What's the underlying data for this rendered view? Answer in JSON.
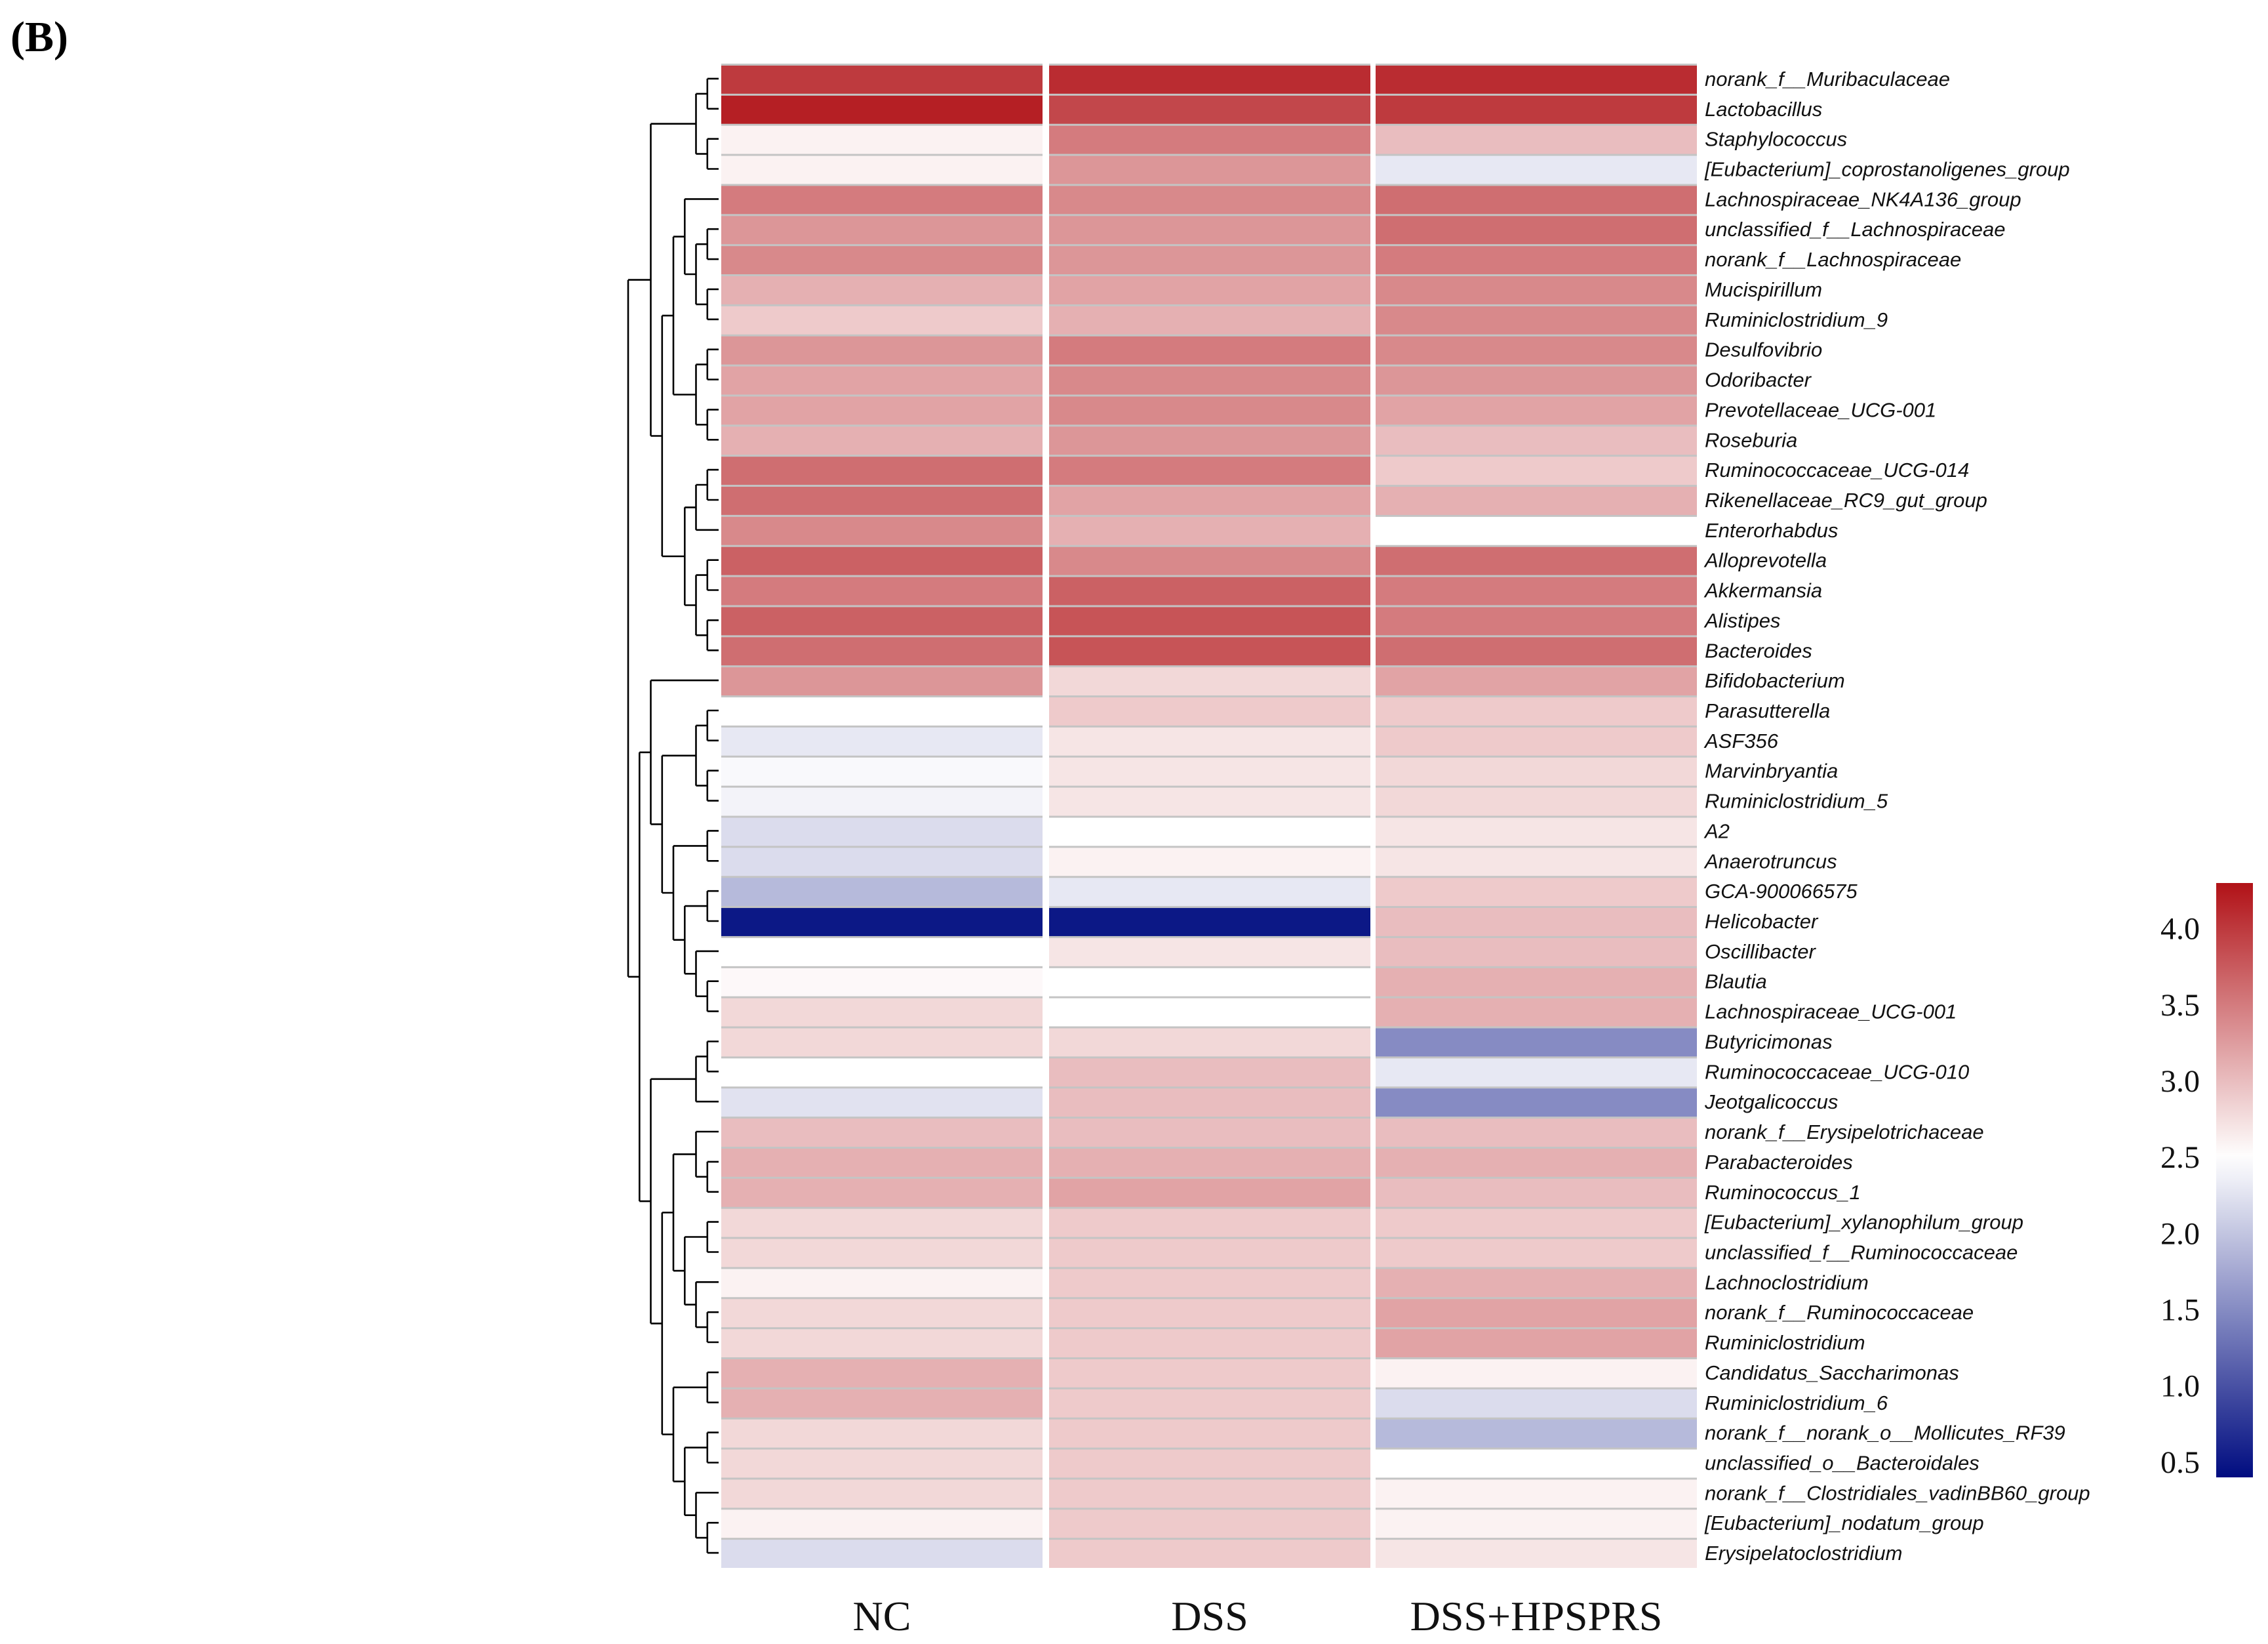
{
  "panel_label": "(B)",
  "chart_data": {
    "type": "heatmap",
    "title": "",
    "columns": [
      "NC",
      "DSS",
      "DSS+HPSPRS"
    ],
    "rows": [
      "norank_f__Muribaculaceae",
      "Lactobacillus",
      "Staphylococcus",
      "[Eubacterium]_coprostanoligenes_group",
      "Lachnospiraceae_NK4A136_group",
      "unclassified_f__Lachnospiraceae",
      "norank_f__Lachnospiraceae",
      "Mucispirillum",
      "Ruminiclostridium_9",
      "Desulfovibrio",
      "Odoribacter",
      "Prevotellaceae_UCG-001",
      "Roseburia",
      "Ruminococcaceae_UCG-014",
      "Rikenellaceae_RC9_gut_group",
      "Enterorhabdus",
      "Alloprevotella",
      "Akkermansia",
      "Alistipes",
      "Bacteroides",
      "Bifidobacterium",
      "Parasutterella",
      "ASF356",
      "Marvinbryantia",
      "Ruminiclostridium_5",
      "A2",
      "Anaerotruncus",
      "GCA-900066575",
      "Helicobacter",
      "Oscillibacter",
      "Blautia",
      "Lachnospiraceae_UCG-001",
      "Butyricimonas",
      "Ruminococcaceae_UCG-010",
      "Jeotgalicoccus",
      "norank_f__Erysipelotrichaceae",
      "Parabacteroides",
      "Ruminococcus_1",
      "[Eubacterium]_xylanophilum_group",
      "unclassified_f__Ruminococcaceae",
      "Lachnoclostridium",
      "norank_f__Ruminococcaceae",
      "Ruminiclostridium",
      "Candidatus_Saccharimonas",
      "Ruminiclostridium_6",
      "norank_f__norank_o__Mollicutes_RF39",
      "unclassified_o__Bacteroidales",
      "norank_f__Clostridiales_vadinBB60_group",
      "[Eubacterium]_nodatum_group",
      "Erysipelatoclostridium"
    ],
    "values": [
      [
        4.0,
        4.1,
        4.1
      ],
      [
        4.2,
        3.9,
        4.0
      ],
      [
        2.6,
        3.5,
        3.0
      ],
      [
        2.6,
        3.3,
        2.3
      ],
      [
        3.5,
        3.4,
        3.6
      ],
      [
        3.3,
        3.3,
        3.6
      ],
      [
        3.4,
        3.3,
        3.5
      ],
      [
        3.1,
        3.2,
        3.4
      ],
      [
        2.9,
        3.1,
        3.4
      ],
      [
        3.3,
        3.5,
        3.4
      ],
      [
        3.2,
        3.4,
        3.3
      ],
      [
        3.2,
        3.4,
        3.2
      ],
      [
        3.1,
        3.3,
        3.0
      ],
      [
        3.6,
        3.5,
        2.9
      ],
      [
        3.6,
        3.2,
        3.1
      ],
      [
        3.4,
        3.1,
        2.5
      ],
      [
        3.7,
        3.4,
        3.6
      ],
      [
        3.5,
        3.7,
        3.5
      ],
      [
        3.7,
        3.8,
        3.5
      ],
      [
        3.6,
        3.8,
        3.6
      ],
      [
        3.3,
        2.8,
        3.2
      ],
      [
        2.5,
        2.9,
        2.9
      ],
      [
        2.3,
        2.7,
        2.9
      ],
      [
        2.45,
        2.7,
        2.8
      ],
      [
        2.4,
        2.7,
        2.8
      ],
      [
        2.2,
        2.5,
        2.7
      ],
      [
        2.2,
        2.6,
        2.7
      ],
      [
        1.9,
        2.3,
        2.9
      ],
      [
        0.5,
        0.5,
        3.0
      ],
      [
        2.5,
        2.7,
        3.0
      ],
      [
        2.55,
        2.5,
        3.1
      ],
      [
        2.8,
        2.5,
        3.1
      ],
      [
        2.8,
        2.8,
        1.5
      ],
      [
        2.5,
        3.0,
        2.3
      ],
      [
        2.25,
        3.0,
        1.5
      ],
      [
        3.0,
        3.0,
        3.0
      ],
      [
        3.1,
        3.1,
        3.1
      ],
      [
        3.1,
        3.2,
        3.0
      ],
      [
        2.8,
        2.9,
        2.9
      ],
      [
        2.8,
        2.9,
        2.9
      ],
      [
        2.6,
        2.9,
        3.1
      ],
      [
        2.8,
        2.9,
        3.2
      ],
      [
        2.8,
        2.9,
        3.2
      ],
      [
        3.1,
        2.9,
        2.6
      ],
      [
        3.1,
        2.9,
        2.2
      ],
      [
        2.8,
        2.9,
        1.9
      ],
      [
        2.8,
        2.9,
        2.5
      ],
      [
        2.8,
        2.9,
        2.6
      ],
      [
        2.6,
        2.9,
        2.6
      ],
      [
        2.2,
        2.9,
        2.7
      ]
    ],
    "colorbar": {
      "min": 0.4,
      "max": 4.3,
      "mid": 2.5,
      "ticks": [
        0.5,
        1.0,
        1.5,
        2.0,
        2.5,
        3.0,
        3.5,
        4.0
      ],
      "tick_labels": [
        "0.5",
        "1.0",
        "1.5",
        "2.0",
        "2.5",
        "3.0",
        "3.5",
        "4.0"
      ],
      "colors": [
        "#000c80",
        "#ffffff",
        "#b11217"
      ]
    },
    "row_dendrogram": true
  }
}
